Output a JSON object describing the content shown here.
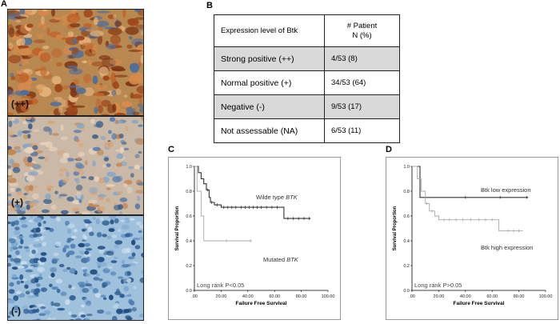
{
  "panels": {
    "a": {
      "letter": "A",
      "images": [
        {
          "label": "(++)"
        },
        {
          "label": "(+)"
        },
        {
          "label": "(-)"
        }
      ]
    },
    "b": {
      "letter": "B",
      "table": {
        "headers": [
          "Expression level of Btk",
          "# Patient",
          "N (%)"
        ],
        "rows": [
          {
            "level": "Strong positive (++)",
            "patients": "4/53 (8)"
          },
          {
            "level": "Normal positive (+)",
            "patients": "34/53 (64)"
          },
          {
            "level": "Negative (-)",
            "patients": "9/53 (17)"
          },
          {
            "level": "Not assessable (NA)",
            "patients": "6/53 (11)"
          }
        ]
      }
    },
    "c": {
      "letter": "C"
    },
    "d": {
      "letter": "D"
    }
  },
  "chart_data": [
    {
      "type": "line",
      "panel": "C",
      "title": "",
      "xlabel": "Failure Free Survival",
      "ylabel": "Survival Proportion",
      "xlim": [
        0,
        100
      ],
      "ylim": [
        0.0,
        1.0
      ],
      "xticks": [
        ".00",
        "20.00",
        "40.00",
        "60.00",
        "80.00",
        "100.00"
      ],
      "yticks": [
        "0.0",
        "0.2",
        "0.4",
        "0.6",
        "0.8",
        "1.0"
      ],
      "annotation": "Long rank P<0.05",
      "series": [
        {
          "name": "Wilde type",
          "name_italic": "BTK",
          "color": "#333333",
          "steps": [
            [
              0,
              1.0
            ],
            [
              3,
              0.95
            ],
            [
              5,
              0.9
            ],
            [
              7,
              0.86
            ],
            [
              9,
              0.81
            ],
            [
              11,
              0.75
            ],
            [
              12,
              0.71
            ],
            [
              15,
              0.69
            ],
            [
              20,
              0.67
            ],
            [
              67,
              0.67
            ],
            [
              67,
              0.58
            ],
            [
              87,
              0.58
            ]
          ],
          "censors": [
            [
              10,
              0.81
            ],
            [
              13,
              0.71
            ],
            [
              17,
              0.69
            ],
            [
              22,
              0.67
            ],
            [
              25,
              0.67
            ],
            [
              28,
              0.67
            ],
            [
              31,
              0.67
            ],
            [
              35,
              0.67
            ],
            [
              38,
              0.67
            ],
            [
              41,
              0.67
            ],
            [
              44,
              0.67
            ],
            [
              47,
              0.67
            ],
            [
              50,
              0.67
            ],
            [
              54,
              0.67
            ],
            [
              58,
              0.67
            ],
            [
              62,
              0.67
            ],
            [
              70,
              0.58
            ],
            [
              74,
              0.58
            ],
            [
              78,
              0.58
            ],
            [
              82,
              0.58
            ],
            [
              86,
              0.58
            ]
          ]
        },
        {
          "name": "Mutated",
          "name_italic": "BTK",
          "color": "#aaaaaa",
          "steps": [
            [
              0,
              1.0
            ],
            [
              2,
              0.8
            ],
            [
              5,
              0.6
            ],
            [
              7,
              0.4
            ],
            [
              43,
              0.4
            ]
          ],
          "censors": [
            [
              24,
              0.4
            ],
            [
              42,
              0.4
            ]
          ]
        }
      ]
    },
    {
      "type": "line",
      "panel": "D",
      "title": "",
      "xlabel": "Failure Free Survival",
      "ylabel": "Survival Proportion",
      "xlim": [
        0,
        100
      ],
      "ylim": [
        0.0,
        1.0
      ],
      "xticks": [
        ".00",
        "20.00",
        "40.00",
        "60.00",
        "80.00",
        "100.00"
      ],
      "yticks": [
        "0.0",
        "0.2",
        "0.4",
        "0.6",
        "0.8",
        "1.0"
      ],
      "annotation": "Long rank P>0.05",
      "series": [
        {
          "name": "Btk low expression",
          "color": "#333333",
          "steps": [
            [
              0,
              1.0
            ],
            [
              6,
              1.0
            ],
            [
              6,
              0.75
            ],
            [
              87,
              0.75
            ]
          ],
          "censors": [
            [
              40,
              0.75
            ],
            [
              66,
              0.75
            ],
            [
              86,
              0.75
            ]
          ]
        },
        {
          "name": "Btk high expression",
          "color": "#aaaaaa",
          "steps": [
            [
              0,
              1.0
            ],
            [
              4,
              0.9
            ],
            [
              7,
              0.8
            ],
            [
              10,
              0.7
            ],
            [
              13,
              0.64
            ],
            [
              17,
              0.6
            ],
            [
              20,
              0.57
            ],
            [
              65,
              0.57
            ],
            [
              65,
              0.48
            ],
            [
              83,
              0.48
            ]
          ],
          "censors": [
            [
              11,
              0.7
            ],
            [
              15,
              0.64
            ],
            [
              24,
              0.57
            ],
            [
              28,
              0.57
            ],
            [
              33,
              0.57
            ],
            [
              38,
              0.57
            ],
            [
              44,
              0.57
            ],
            [
              50,
              0.57
            ],
            [
              55,
              0.57
            ],
            [
              60,
              0.57
            ],
            [
              72,
              0.48
            ],
            [
              76,
              0.48
            ],
            [
              80,
              0.48
            ]
          ]
        }
      ]
    }
  ]
}
